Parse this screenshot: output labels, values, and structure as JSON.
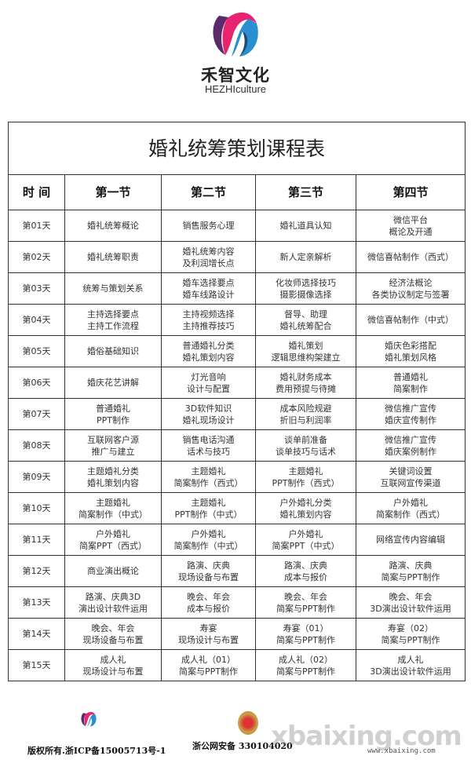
{
  "brand": {
    "name_cn": "禾智文化",
    "name_en": "HEZHIculture"
  },
  "table": {
    "title": "婚礼统筹策划课程表",
    "headers": [
      "时 间",
      "第一节",
      "第二节",
      "第三节",
      "第四节"
    ],
    "rows": [
      [
        "第01天",
        "婚礼统筹概论",
        "销售服务心理",
        "婚礼道具认知",
        "微信平台\n概论及开通"
      ],
      [
        "第02天",
        "婚礼统筹职责",
        "婚礼统筹内容\n及利润增长点",
        "新人定亲解析",
        "微信喜帖制作（西式）"
      ],
      [
        "第03天",
        "统筹与策划关系",
        "婚车选择要点\n婚车线路设计",
        "化妆师选择技巧\n摄影摄像选择",
        "经济法概论\n各类协议制定与签署"
      ],
      [
        "第04天",
        "主持选择要点\n主持工作流程",
        "主持视频选择\n主持推荐技巧",
        "督导、助理\n婚礼统筹配合",
        "微信喜帖制作（中式）"
      ],
      [
        "第05天",
        "婚俗基础知识",
        "普通婚礼分类\n婚礼策划内容",
        "婚礼策划\n逻辑思维构架建立",
        "婚庆色彩搭配\n婚礼策划风格"
      ],
      [
        "第06天",
        "婚庆花艺讲解",
        "灯光音响\n设计与配置",
        "婚礼财务成本\n费用预提与待摊",
        "普通婚礼\n简案制作"
      ],
      [
        "第07天",
        "普通婚礼\nPPT制作",
        "3D软件知识\n婚礼现场设计",
        "成本风险规避\n折旧与利润率",
        "微信推广宣传\n婚庆宣传制作"
      ],
      [
        "第08天",
        "互联网客户源\n推广与建立",
        "销售电话沟通\n话术与技巧",
        "谈单前准备\n谈单技巧与话术",
        "微信推广宣传\n婚庆案例制作"
      ],
      [
        "第09天",
        "主题婚礼分类\n婚礼策划内容",
        "主题婚礼\n简案制作（西式）",
        "主题婚礼\nPPT制作（西式）",
        "关键词设置\n互联网宣传渠道"
      ],
      [
        "第10天",
        "主题婚礼\n简案制作（中式）",
        "主题婚礼\nPPT制作（中式）",
        "户外婚礼分类\n婚礼策划内容",
        "户外婚礼\n简案制作（西式）"
      ],
      [
        "第11天",
        "户外婚礼\n简案PPT（西式）",
        "户外婚礼\n简案制作（中式）",
        "户外婚礼\n简案PPT（中式）",
        "网络宣传内容编辑"
      ],
      [
        "第12天",
        "商业演出概论",
        "路演、庆典\n现场设备与布置",
        "路演、庆典\n成本与报价",
        "路演、庆典\n简案与PPT制作"
      ],
      [
        "第13天",
        "路演、庆典3D\n演出设计软件运用",
        "晚会、年会\n成本与报价",
        "晚会、年会\n简案与PPT制作",
        "晚会、年会\n3D演出设计软件运用"
      ],
      [
        "第14天",
        "晚会、年会\n现场设备与布置",
        "寿宴\n现场设计与布置",
        "寿宴（01）\n简案与PPT制作",
        "寿宴（02）\n简案与PPT制作"
      ],
      [
        "第15天",
        "成人礼\n现场设计与布置",
        "成人礼（01）\n简案与PPT制作",
        "成人礼（02）\n简案与PPT制作",
        "成人礼\n3D演出设计软件运用"
      ]
    ]
  },
  "footer": {
    "copyright": "版权所有.浙ICP备15005713号-1",
    "police": "浙公网安备 330104020",
    "watermark": "xbaixing.com",
    "watermark_url": "www.xbaixing.com"
  },
  "colors": {
    "logo_pink": "#e8236f",
    "logo_blue": "#2a8fd0",
    "logo_purple": "#5a2a6a",
    "border": "#333333"
  }
}
